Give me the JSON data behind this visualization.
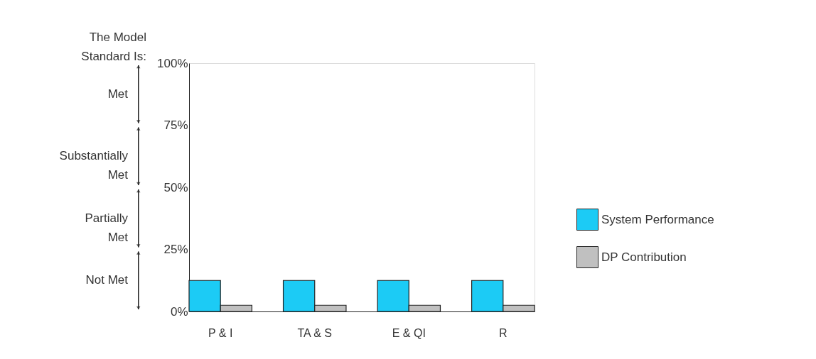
{
  "chart_data": {
    "type": "bar",
    "categories": [
      "P & I",
      "TA & S",
      "E & QI",
      "R"
    ],
    "series": [
      {
        "name": "System Performance",
        "color": "#1ccbf5",
        "values": [
          12.5,
          12.5,
          12.5,
          12.5
        ]
      },
      {
        "name": "DP Contribution",
        "color": "#c0c0c0",
        "values": [
          2.5,
          2.5,
          2.5,
          2.5
        ]
      }
    ],
    "ylim": [
      0,
      100
    ],
    "yticks": [
      {
        "value": 0,
        "label": "0%"
      },
      {
        "value": 25,
        "label": "25%"
      },
      {
        "value": 50,
        "label": "50%"
      },
      {
        "value": 75,
        "label": "75%"
      },
      {
        "value": 100,
        "label": "100%"
      }
    ],
    "annotations": [
      "The Model Standard Is:",
      "Met",
      "Substantially Met",
      "Partially Met",
      "Not Met"
    ],
    "legend": "right",
    "grid": false
  }
}
